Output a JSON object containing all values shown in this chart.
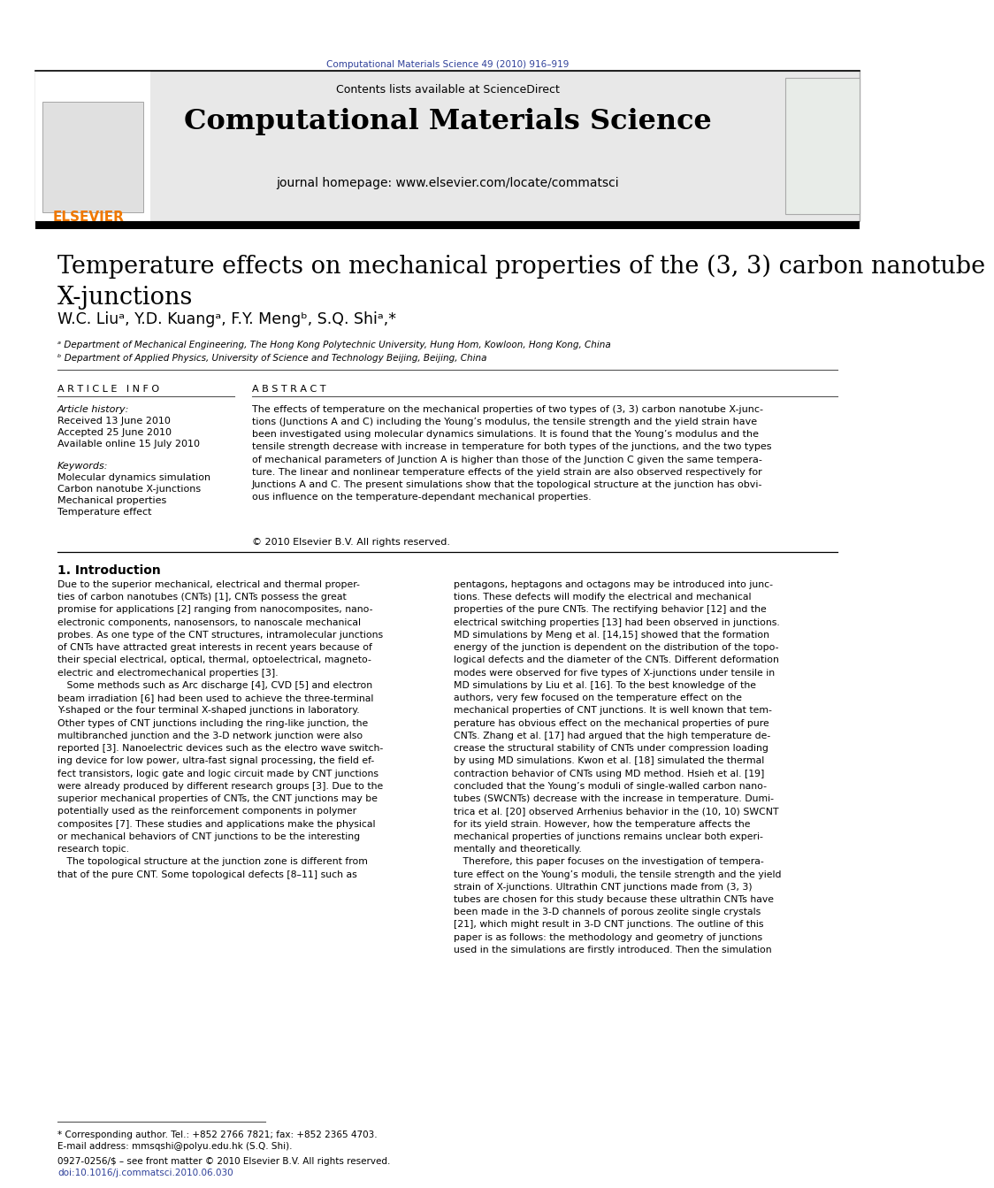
{
  "page_bg": "#ffffff",
  "header_citation": "Computational Materials Science 49 (2010) 916–919",
  "header_citation_color": "#2e4099",
  "journal_banner_bg": "#e8e8e8",
  "journal_name": "Computational Materials Science",
  "journal_homepage": "journal homepage: www.elsevier.com/locate/commatsci",
  "contents_text": "Contents lists available at ScienceDirect",
  "elsevier_color": "#f07800",
  "paper_title": "Temperature effects on mechanical properties of the (3, 3) carbon nanotube\nX-junctions",
  "authors": "W.C. Liuᵃ, Y.D. Kuangᵃ, F.Y. Mengᵇ, S.Q. Shiᵃ,*",
  "affiliation_a": "ᵃ Department of Mechanical Engineering, The Hong Kong Polytechnic University, Hung Hom, Kowloon, Hong Kong, China",
  "affiliation_b": "ᵇ Department of Applied Physics, University of Science and Technology Beijing, Beijing, China",
  "article_info_label": "A R T I C L E   I N F O",
  "abstract_label": "A B S T R A C T",
  "article_history_label": "Article history:",
  "received": "Received 13 June 2010",
  "accepted": "Accepted 25 June 2010",
  "available": "Available online 15 July 2010",
  "keywords_label": "Keywords:",
  "keywords": [
    "Molecular dynamics simulation",
    "Carbon nanotube X-junctions",
    "Mechanical properties",
    "Temperature effect"
  ],
  "abstract_text": "The effects of temperature on the mechanical properties of two types of (3, 3) carbon nanotube X-junc-\ntions (Junctions A and C) including the Young’s modulus, the tensile strength and the yield strain have\nbeen investigated using molecular dynamics simulations. It is found that the Young’s modulus and the\ntensile strength decrease with increase in temperature for both types of the junctions, and the two types\nof mechanical parameters of Junction A is higher than those of the Junction C given the same tempera-\nture. The linear and nonlinear temperature effects of the yield strain are also observed respectively for\nJunctions A and C. The present simulations show that the topological structure at the junction has obvi-\nous influence on the temperature-dependant mechanical properties.",
  "copyright": "© 2010 Elsevier B.V. All rights reserved.",
  "section_title": "1. Introduction",
  "intro_col1": "Due to the superior mechanical, electrical and thermal proper-\nties of carbon nanotubes (CNTs) [1], CNTs possess the great\npromise for applications [2] ranging from nanocomposites, nano-\nelectronic components, nanosensors, to nanoscale mechanical\nprobes. As one type of the CNT structures, intramolecular junctions\nof CNTs have attracted great interests in recent years because of\ntheir special electrical, optical, thermal, optoelectrical, magneto-\nelectric and electromechanical properties [3].\n   Some methods such as Arc discharge [4], CVD [5] and electron\nbeam irradiation [6] had been used to achieve the three-terminal\nY-shaped or the four terminal X-shaped junctions in laboratory.\nOther types of CNT junctions including the ring-like junction, the\nmultibranched junction and the 3-D network junction were also\nreported [3]. Nanoelectric devices such as the electro wave switch-\ning device for low power, ultra-fast signal processing, the field ef-\nfect transistors, logic gate and logic circuit made by CNT junctions\nwere already produced by different research groups [3]. Due to the\nsuperior mechanical properties of CNTs, the CNT junctions may be\npotentially used as the reinforcement components in polymer\ncomposites [7]. These studies and applications make the physical\nor mechanical behaviors of CNT junctions to be the interesting\nresearch topic.\n   The topological structure at the junction zone is different from\nthat of the pure CNT. Some topological defects [8–11] such as",
  "intro_col2": "pentagons, heptagons and octagons may be introduced into junc-\ntions. These defects will modify the electrical and mechanical\nproperties of the pure CNTs. The rectifying behavior [12] and the\nelectrical switching properties [13] had been observed in junctions.\nMD simulations by Meng et al. [14,15] showed that the formation\nenergy of the junction is dependent on the distribution of the topo-\nlogical defects and the diameter of the CNTs. Different deformation\nmodes were observed for five types of X-junctions under tensile in\nMD simulations by Liu et al. [16]. To the best knowledge of the\nauthors, very few focused on the temperature effect on the\nmechanical properties of CNT junctions. It is well known that tem-\nperature has obvious effect on the mechanical properties of pure\nCNTs. Zhang et al. [17] had argued that the high temperature de-\ncrease the structural stability of CNTs under compression loading\nby using MD simulations. Kwon et al. [18] simulated the thermal\ncontraction behavior of CNTs using MD method. Hsieh et al. [19]\nconcluded that the Young’s moduli of single-walled carbon nano-\ntubes (SWCNTs) decrease with the increase in temperature. Dumi-\ntrica et al. [20] observed Arrhenius behavior in the (10, 10) SWCNT\nfor its yield strain. However, how the temperature affects the\nmechanical properties of junctions remains unclear both experi-\nmentally and theoretically.\n   Therefore, this paper focuses on the investigation of tempera-\nture effect on the Young’s moduli, the tensile strength and the yield\nstrain of X-junctions. Ultrathin CNT junctions made from (3, 3)\ntubes are chosen for this study because these ultrathin CNTs have\nbeen made in the 3-D channels of porous zeolite single crystals\n[21], which might result in 3-D CNT junctions. The outline of this\npaper is as follows: the methodology and geometry of junctions\nused in the simulations are firstly introduced. Then the simulation",
  "footnote_star": "* Corresponding author. Tel.: +852 2766 7821; fax: +852 2365 4703.",
  "footnote_email": "E-mail address: mmsqshi@polyu.edu.hk (S.Q. Shi).",
  "issn_line": "0927-0256/$ – see front matter © 2010 Elsevier B.V. All rights reserved.",
  "doi_line": "doi:10.1016/j.commatsci.2010.06.030"
}
